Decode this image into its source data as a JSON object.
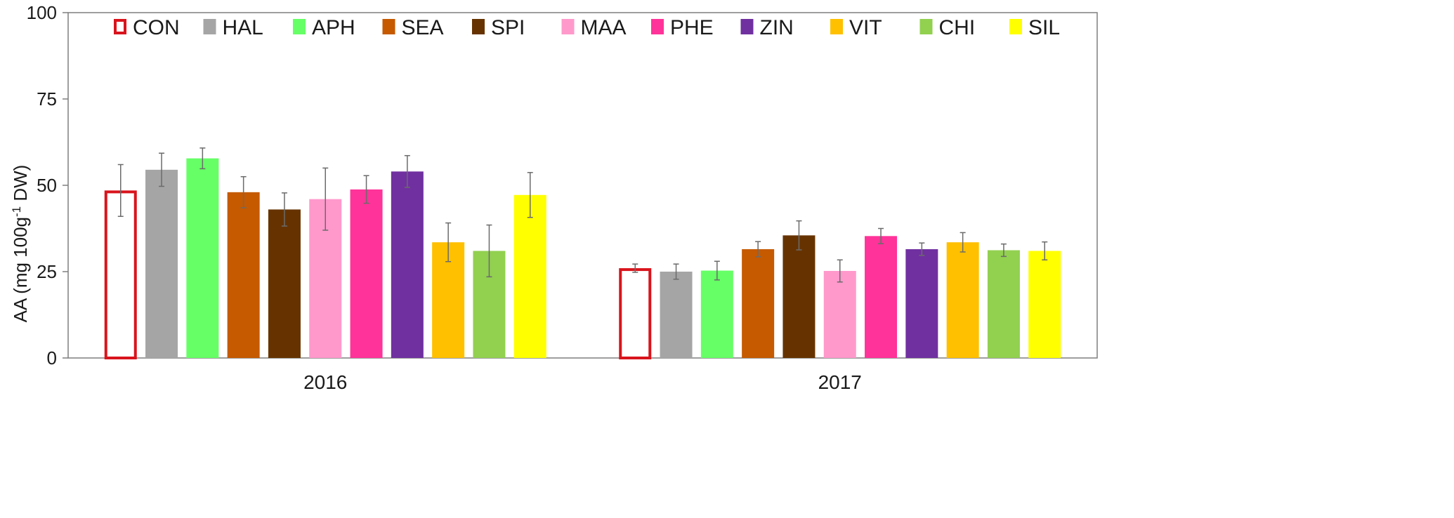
{
  "chart_data": {
    "type": "bar",
    "categories": [
      "2016",
      "2017"
    ],
    "ylabel": {
      "main": "AA (mg 100g",
      "sup": "-1",
      "unit": " DW)"
    },
    "ylim": [
      0,
      100
    ],
    "yticks": [
      0,
      25,
      50,
      75,
      100
    ],
    "grid": false,
    "legend_position": "top",
    "series": [
      {
        "name": "CON",
        "color": "#d9141c",
        "hollow": true,
        "values": [
          48.5,
          26.0
        ],
        "errors": [
          7.5,
          1.2
        ]
      },
      {
        "name": "HAL",
        "color": "#a5a5a5",
        "values": [
          54.5,
          25.0
        ],
        "errors": [
          4.8,
          2.2
        ]
      },
      {
        "name": "APH",
        "color": "#66ff66",
        "values": [
          57.8,
          25.3
        ],
        "errors": [
          3.0,
          2.7
        ]
      },
      {
        "name": "SEA",
        "color": "#c55a00",
        "values": [
          48.0,
          31.5
        ],
        "errors": [
          4.5,
          2.2
        ]
      },
      {
        "name": "SPI",
        "color": "#663300",
        "values": [
          43.0,
          35.5
        ],
        "errors": [
          4.8,
          4.2
        ]
      },
      {
        "name": "MAA",
        "color": "#ff99cc",
        "values": [
          46.0,
          25.2
        ],
        "errors": [
          9.0,
          3.2
        ]
      },
      {
        "name": "PHE",
        "color": "#ff3399",
        "values": [
          48.8,
          35.3
        ],
        "errors": [
          4.0,
          2.2
        ]
      },
      {
        "name": "ZIN",
        "color": "#7030a0",
        "values": [
          54.0,
          31.5
        ],
        "errors": [
          4.6,
          1.8
        ]
      },
      {
        "name": "VIT",
        "color": "#ffc000",
        "values": [
          33.5,
          33.5
        ],
        "errors": [
          5.6,
          2.8
        ]
      },
      {
        "name": "CHI",
        "color": "#92d050",
        "values": [
          31.0,
          31.2
        ],
        "errors": [
          7.5,
          1.8
        ]
      },
      {
        "name": "SIL",
        "color": "#ffff00",
        "values": [
          47.2,
          31.0
        ],
        "errors": [
          6.5,
          2.6
        ]
      }
    ]
  }
}
